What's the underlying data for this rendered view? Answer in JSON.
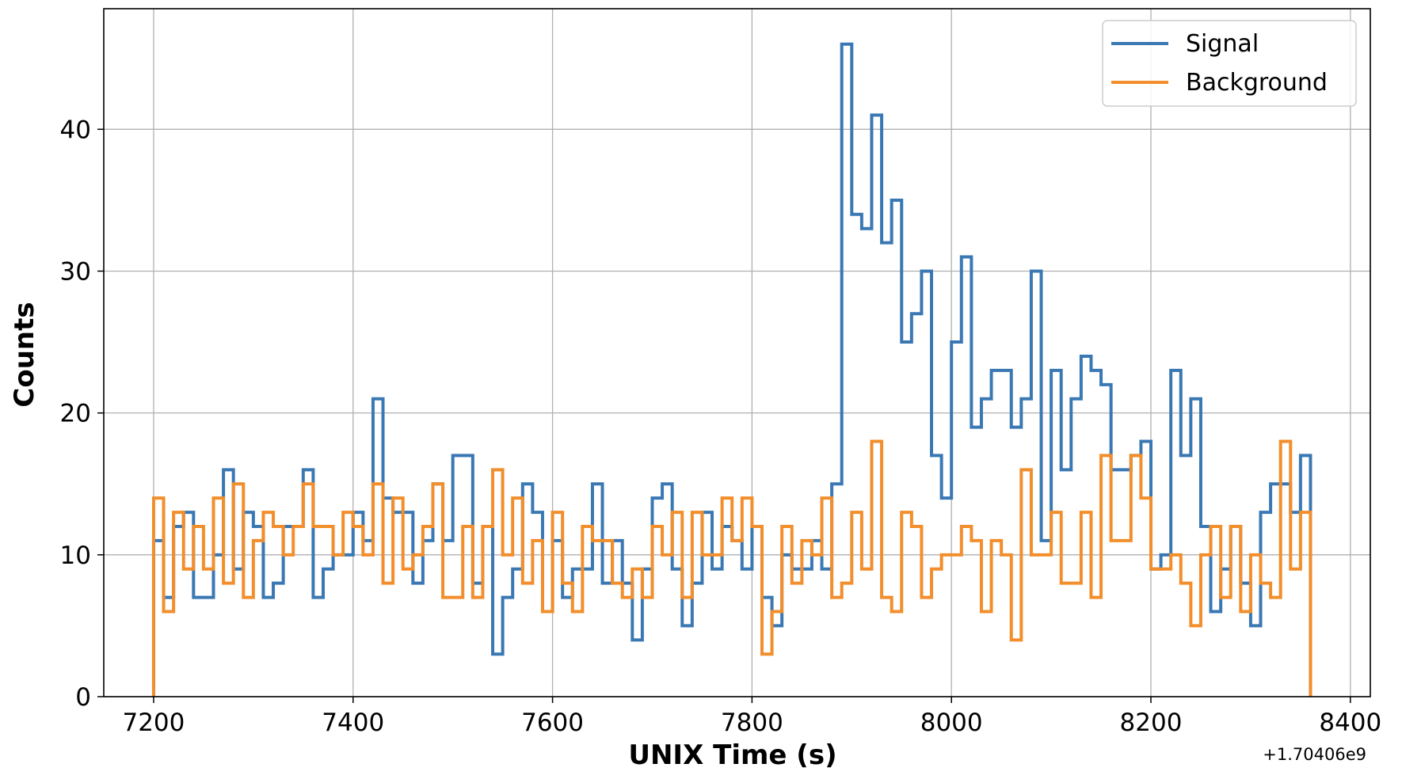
{
  "chart_data": {
    "type": "line",
    "drawstyle": "steps",
    "title": "",
    "xlabel": "UNIX Time (s)",
    "ylabel": "Counts",
    "x_offset_label": "+1.70406e9",
    "xlim": [
      7150,
      8420
    ],
    "ylim": [
      0,
      48.5
    ],
    "x_ticks": [
      7200,
      7400,
      7600,
      7800,
      8000,
      8200,
      8400
    ],
    "y_ticks": [
      0,
      10,
      20,
      30,
      40
    ],
    "grid": true,
    "legend_position": "top-right",
    "bin_width": 10,
    "x_start": 7200,
    "series": [
      {
        "name": "Signal",
        "color": "#3a78b4",
        "values": [
          11,
          7,
          12,
          13,
          7,
          7,
          10,
          16,
          9,
          13,
          12,
          7,
          8,
          12,
          12,
          16,
          7,
          9,
          10,
          10,
          13,
          11,
          21,
          14,
          13,
          13,
          8,
          11,
          15,
          11,
          17,
          17,
          8,
          12,
          3,
          7,
          9,
          15,
          13,
          6,
          11,
          7,
          9,
          9,
          15,
          8,
          11,
          8,
          4,
          9,
          14,
          15,
          9,
          5,
          8,
          13,
          9,
          12,
          11,
          9,
          12,
          7,
          5,
          10,
          9,
          9,
          11,
          9,
          15,
          46,
          34,
          33,
          41,
          32,
          35,
          25,
          27,
          30,
          17,
          14,
          25,
          31,
          19,
          21,
          23,
          23,
          19,
          21,
          30,
          11,
          23,
          16,
          21,
          24,
          23,
          22,
          16,
          16,
          17,
          18,
          9,
          10,
          23,
          17,
          21,
          12,
          6,
          9,
          12,
          8,
          5,
          13,
          15,
          15,
          13,
          17
        ]
      },
      {
        "name": "Background",
        "color": "#f28e2b",
        "values": [
          14,
          6,
          13,
          9,
          12,
          9,
          14,
          8,
          15,
          7,
          11,
          13,
          12,
          10,
          12,
          15,
          12,
          12,
          10,
          13,
          12,
          10,
          15,
          8,
          14,
          9,
          10,
          12,
          15,
          7,
          7,
          12,
          7,
          12,
          16,
          10,
          14,
          8,
          11,
          6,
          13,
          8,
          6,
          12,
          11,
          11,
          8,
          7,
          9,
          7,
          12,
          10,
          13,
          7,
          13,
          10,
          10,
          14,
          11,
          14,
          12,
          3,
          6,
          12,
          8,
          11,
          10,
          14,
          7,
          8,
          13,
          9,
          18,
          7,
          6,
          13,
          12,
          7,
          9,
          10,
          10,
          12,
          11,
          6,
          11,
          10,
          4,
          16,
          10,
          10,
          13,
          8,
          8,
          13,
          7,
          17,
          11,
          11,
          17,
          14,
          9,
          9,
          10,
          8,
          5,
          10,
          12,
          7,
          12,
          6,
          10,
          8,
          7,
          18,
          9,
          13
        ]
      }
    ]
  }
}
